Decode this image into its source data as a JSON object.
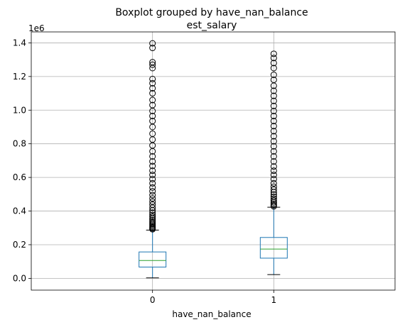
{
  "chart_data": {
    "type": "boxplot",
    "title": "Boxplot grouped by have_nan_balance",
    "subtitle": "est_salary",
    "xlabel": "have_nan_balance",
    "ylabel": "",
    "y_offset_text": "1e6",
    "y_scale_factor": 1000000,
    "ylim": [
      -0.07,
      1.465
    ],
    "yticks": [
      0.0,
      0.2,
      0.4,
      0.6,
      0.8,
      1.0,
      1.2,
      1.4
    ],
    "ytick_labels": [
      "0.0",
      "0.2",
      "0.4",
      "0.6",
      "0.8",
      "1.0",
      "1.2",
      "1.4"
    ],
    "grid": true,
    "box_color": "#1f77b4",
    "median_color": "#2ca02c",
    "categories": [
      "0",
      "1"
    ],
    "boxes": [
      {
        "category": "0",
        "whisker_low": 0.003,
        "q1": 0.067,
        "median": 0.106,
        "q3": 0.157,
        "whisker_high": 0.287,
        "outliers": [
          0.292,
          0.297,
          0.302,
          0.308,
          0.315,
          0.322,
          0.33,
          0.338,
          0.347,
          0.356,
          0.366,
          0.377,
          0.39,
          0.404,
          0.42,
          0.438,
          0.456,
          0.475,
          0.495,
          0.518,
          0.54,
          0.565,
          0.59,
          0.615,
          0.64,
          0.668,
          0.695,
          0.725,
          0.755,
          0.79,
          0.825,
          0.86,
          0.9,
          0.935,
          0.965,
          0.995,
          1.03,
          1.06,
          1.1,
          1.13,
          1.16,
          1.185,
          1.25,
          1.27,
          1.285,
          1.37,
          1.397
        ]
      },
      {
        "category": "1",
        "whisker_low": 0.022,
        "q1": 0.12,
        "median": 0.174,
        "q3": 0.243,
        "whisker_high": 0.423,
        "outliers": [
          0.428,
          0.435,
          0.443,
          0.452,
          0.462,
          0.473,
          0.485,
          0.498,
          0.512,
          0.528,
          0.545,
          0.565,
          0.59,
          0.615,
          0.64,
          0.665,
          0.695,
          0.725,
          0.755,
          0.785,
          0.815,
          0.845,
          0.875,
          0.905,
          0.935,
          0.965,
          0.995,
          1.025,
          1.055,
          1.085,
          1.115,
          1.145,
          1.18,
          1.21,
          1.25,
          1.28,
          1.31,
          1.335
        ]
      }
    ]
  }
}
